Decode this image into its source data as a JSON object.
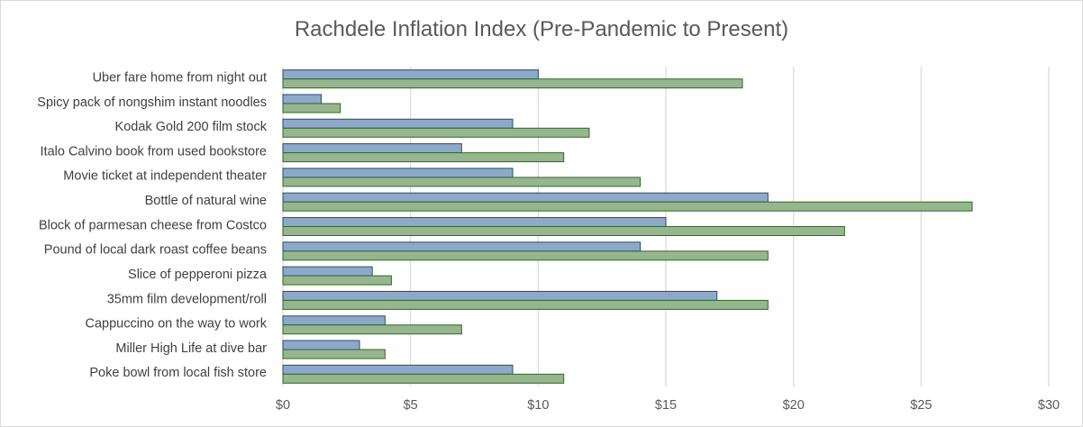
{
  "chart_data": {
    "type": "bar",
    "orientation": "horizontal",
    "title": "Rachdele Inflation Index (Pre-Pandemic to Present)",
    "xlabel": "",
    "ylabel": "",
    "xlim": [
      0,
      30
    ],
    "x_ticks": [
      "$0",
      "$5",
      "$10",
      "$15",
      "$20",
      "$25",
      "$30"
    ],
    "x_tick_values": [
      0,
      5,
      10,
      15,
      20,
      25,
      30
    ],
    "grid": true,
    "legend": "none",
    "categories": [
      "Uber fare home from night out",
      "Spicy pack of nongshim instant noodles",
      "Kodak Gold 200 film stock",
      "Italo Calvino book from used bookstore",
      "Movie ticket at independent theater",
      "Bottle of natural wine",
      "Block of parmesan cheese from Costco",
      "Pound of local dark roast coffee beans",
      "Slice of pepperoni pizza",
      "35mm film development/roll",
      "Cappuccino on the way to work",
      "Miller High Life at dive bar ",
      "Poke bowl from local fish store"
    ],
    "series": [
      {
        "values": [
          10,
          1.5,
          9,
          7,
          9,
          19,
          15,
          14,
          3.5,
          17,
          4,
          3,
          9
        ],
        "fill": "#8ea9c8",
        "stroke": "#1f4e79"
      },
      {
        "values": [
          18,
          2.25,
          12,
          11,
          14,
          27,
          22,
          19,
          4.25,
          19,
          7,
          4,
          11
        ],
        "fill": "#97b58e",
        "stroke": "#2e6b22"
      }
    ]
  }
}
